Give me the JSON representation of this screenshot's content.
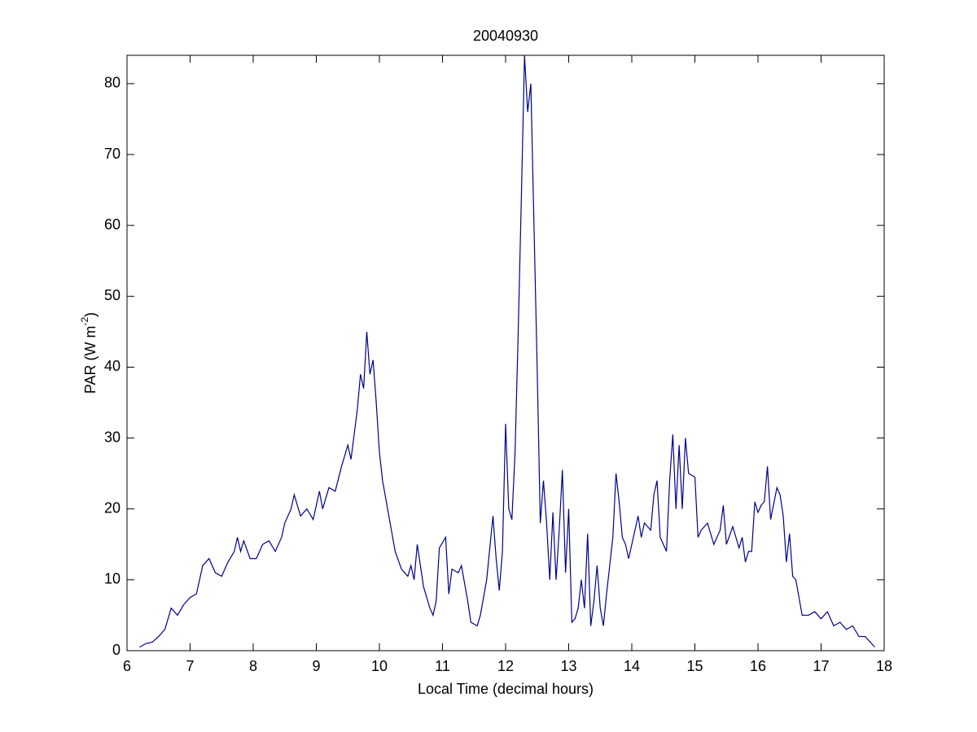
{
  "chart_data": {
    "type": "line",
    "title": "20040930",
    "xlabel": "Local Time (decimal hours)",
    "ylabel": [
      "PAR (W m",
      "-2",
      ")"
    ],
    "x": [
      6.2,
      6.3,
      6.4,
      6.5,
      6.6,
      6.7,
      6.8,
      6.9,
      7.0,
      7.1,
      7.2,
      7.3,
      7.4,
      7.5,
      7.6,
      7.7,
      7.75,
      7.8,
      7.85,
      7.95,
      8.05,
      8.15,
      8.25,
      8.35,
      8.45,
      8.5,
      8.6,
      8.65,
      8.75,
      8.85,
      8.95,
      9.05,
      9.1,
      9.2,
      9.3,
      9.4,
      9.5,
      9.55,
      9.65,
      9.7,
      9.75,
      9.8,
      9.85,
      9.9,
      9.95,
      10.0,
      10.05,
      10.15,
      10.25,
      10.35,
      10.45,
      10.5,
      10.55,
      10.6,
      10.7,
      10.8,
      10.85,
      10.9,
      10.95,
      11.05,
      11.1,
      11.15,
      11.25,
      11.3,
      11.4,
      11.45,
      11.55,
      11.6,
      11.7,
      11.8,
      11.85,
      11.9,
      11.95,
      12.0,
      12.05,
      12.1,
      12.15,
      12.2,
      12.25,
      12.3,
      12.35,
      12.4,
      12.45,
      12.5,
      12.55,
      12.6,
      12.65,
      12.7,
      12.75,
      12.8,
      12.85,
      12.9,
      12.95,
      13.0,
      13.05,
      13.1,
      13.15,
      13.2,
      13.25,
      13.3,
      13.35,
      13.4,
      13.45,
      13.5,
      13.55,
      13.6,
      13.7,
      13.75,
      13.8,
      13.85,
      13.9,
      13.95,
      14.05,
      14.1,
      14.15,
      14.2,
      14.3,
      14.35,
      14.4,
      14.45,
      14.5,
      14.55,
      14.6,
      14.65,
      14.7,
      14.75,
      14.8,
      14.85,
      14.9,
      15.0,
      15.05,
      15.1,
      15.2,
      15.3,
      15.4,
      15.45,
      15.5,
      15.6,
      15.7,
      15.75,
      15.8,
      15.85,
      15.9,
      15.95,
      16.0,
      16.05,
      16.1,
      16.15,
      16.2,
      16.3,
      16.35,
      16.4,
      16.45,
      16.5,
      16.55,
      16.6,
      16.7,
      16.8,
      16.9,
      17.0,
      17.1,
      17.2,
      17.3,
      17.4,
      17.5,
      17.6,
      17.7,
      17.8,
      17.85
    ],
    "series": [
      {
        "color": "#00008b",
        "values": [
          0.5,
          1,
          1.2,
          2,
          3,
          6,
          5,
          6.5,
          7.5,
          8,
          12,
          13,
          11,
          10.5,
          12.5,
          14,
          16,
          14,
          15.5,
          13,
          13,
          15,
          15.5,
          14,
          16,
          18,
          20,
          22,
          19,
          20,
          18.5,
          22.5,
          20,
          23,
          22.5,
          26,
          29,
          27,
          34,
          39,
          37,
          45,
          39,
          41,
          35,
          28,
          24,
          19,
          14,
          11.5,
          10.5,
          12,
          10,
          15,
          9,
          6,
          5,
          7,
          14.5,
          16,
          8,
          11.5,
          11,
          12,
          7,
          4,
          3.5,
          5,
          10,
          19,
          13,
          8.5,
          14,
          32,
          20,
          18.5,
          28,
          45,
          64,
          84,
          76,
          80,
          60,
          40,
          18,
          24,
          18,
          10,
          19.5,
          10,
          17,
          25.5,
          11,
          20,
          4,
          4.5,
          6,
          10,
          6,
          16.5,
          3.5,
          7,
          12,
          6,
          3.5,
          8,
          16,
          25,
          21,
          16,
          15,
          13,
          17,
          19,
          16,
          18,
          17,
          22,
          24,
          16,
          15,
          14,
          24,
          30.5,
          20,
          29,
          20,
          30,
          25,
          24.5,
          16,
          17,
          18,
          15,
          17,
          20.5,
          15,
          17.5,
          14.5,
          16,
          12.5,
          14,
          14,
          21,
          19.5,
          20.5,
          21,
          26,
          18.5,
          23,
          22,
          19,
          12.5,
          16.5,
          10.5,
          10,
          5,
          5,
          5.5,
          4.5,
          5.5,
          3.5,
          4,
          3,
          3.5,
          2,
          2,
          1,
          0.5
        ]
      }
    ],
    "xlim": [
      6,
      18
    ],
    "ylim": [
      0,
      84
    ],
    "xticks": [
      6,
      7,
      8,
      9,
      10,
      11,
      12,
      13,
      14,
      15,
      16,
      17,
      18
    ],
    "yticks": [
      0,
      10,
      20,
      30,
      40,
      50,
      60,
      70,
      80
    ],
    "grid": false
  }
}
